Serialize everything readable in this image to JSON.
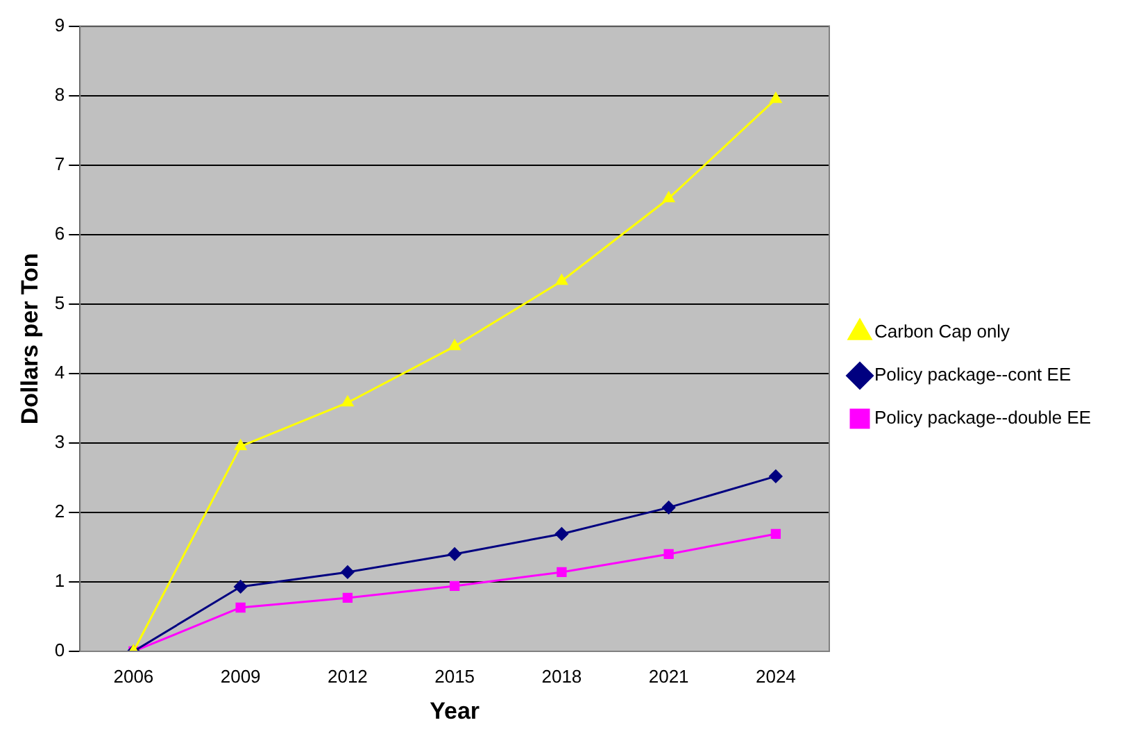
{
  "chart_data": {
    "type": "line",
    "xlabel": "Year",
    "ylabel": "Dollars per Ton",
    "categories": [
      "2006",
      "2009",
      "2012",
      "2015",
      "2018",
      "2021",
      "2024"
    ],
    "series": [
      {
        "name": "Carbon Cap only",
        "color": "#ffff00",
        "marker": "triangle",
        "values": [
          0,
          2.95,
          3.58,
          4.39,
          5.33,
          6.52,
          7.95
        ]
      },
      {
        "name": "Policy package--cont EE",
        "color": "#000080",
        "marker": "diamond",
        "values": [
          0,
          0.93,
          1.14,
          1.4,
          1.69,
          2.07,
          2.52
        ]
      },
      {
        "name": "Policy package--double EE",
        "color": "#ff00ff",
        "marker": "square",
        "values": [
          0,
          0.63,
          0.77,
          0.94,
          1.14,
          1.4,
          1.69
        ]
      }
    ],
    "ylim": [
      0,
      9
    ],
    "yticks": [
      0,
      1,
      2,
      3,
      4,
      5,
      6,
      7,
      8,
      9
    ],
    "grid": "y",
    "legend": "right",
    "line_style": "solid"
  }
}
